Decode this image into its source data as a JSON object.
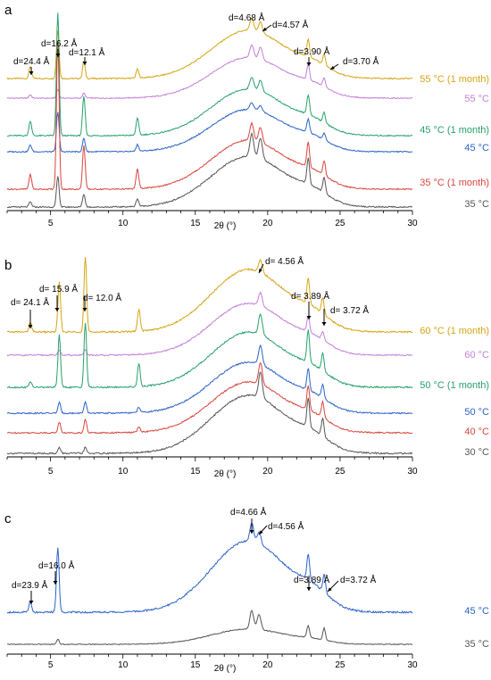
{
  "colors": {
    "55c1m": "#d4a514",
    "55c": "#c47fd8",
    "45c1m": "#27a06b",
    "45c": "#2a62c8",
    "35c1m": "#d9453c",
    "35c": "#555555",
    "60c1m": "#d4a514",
    "60c": "#c47fd8",
    "50c1m": "#27a06b",
    "50c": "#2a62c8",
    "40c": "#d9453c",
    "30c": "#555555",
    "c45c": "#2a62c8",
    "c35c": "#555555",
    "axis": "#000000"
  },
  "chart_data": [
    {
      "type": "line",
      "panel_label": "a",
      "xlabel": "2θ (°)",
      "xlim": [
        2,
        30
      ],
      "xticks": [
        5,
        10,
        15,
        20,
        25,
        30
      ],
      "series": [
        {
          "name": "55 °C (1 month)",
          "color_key": "55c1m",
          "peaks": [
            [
              3.6,
              0.25
            ],
            [
              5.5,
              1.0
            ],
            [
              7.3,
              0.35
            ],
            [
              11.0,
              0.18
            ],
            [
              22.8,
              0.35
            ],
            [
              23.9,
              0.22
            ]
          ],
          "hump": 1.0,
          "sharp_on_hump": [
            [
              18.9,
              0.25
            ],
            [
              19.5,
              0.22
            ]
          ]
        },
        {
          "name": "55 °C",
          "color_key": "55c",
          "peaks": [
            [
              3.6,
              0.08
            ],
            [
              5.5,
              0.2
            ],
            [
              7.3,
              0.12
            ],
            [
              22.8,
              0.35
            ],
            [
              23.9,
              0.2
            ]
          ],
          "hump": 0.95,
          "sharp_on_hump": [
            [
              18.9,
              0.3
            ],
            [
              19.5,
              0.28
            ]
          ]
        },
        {
          "name": "45 °C (1 month)",
          "color_key": "45c1m",
          "peaks": [
            [
              3.6,
              0.3
            ],
            [
              5.5,
              2.5
            ],
            [
              7.3,
              0.8
            ],
            [
              11.0,
              0.35
            ],
            [
              22.8,
              0.4
            ],
            [
              23.9,
              0.2
            ]
          ],
          "hump": 0.95,
          "sharp_on_hump": [
            [
              18.9,
              0.25
            ],
            [
              19.5,
              0.22
            ]
          ]
        },
        {
          "name": "45 °C",
          "color_key": "45c",
          "peaks": [
            [
              3.6,
              0.15
            ],
            [
              5.5,
              0.9
            ],
            [
              7.3,
              0.3
            ],
            [
              11.0,
              0.15
            ],
            [
              22.8,
              0.3
            ],
            [
              23.9,
              0.15
            ]
          ],
          "hump": 0.95,
          "sharp_on_hump": [
            [
              18.9,
              0.15
            ],
            [
              19.5,
              0.12
            ]
          ]
        },
        {
          "name": "35 °C (1 month)",
          "color_key": "35c1m",
          "peaks": [
            [
              3.6,
              0.3
            ],
            [
              5.5,
              3.0
            ],
            [
              7.3,
              0.9
            ],
            [
              11.0,
              0.4
            ],
            [
              22.8,
              0.5
            ],
            [
              23.9,
              0.3
            ]
          ],
          "hump": 1.0,
          "sharp_on_hump": [
            [
              18.9,
              0.35
            ],
            [
              19.5,
              0.3
            ]
          ]
        },
        {
          "name": "35 °C",
          "color_key": "35c",
          "peaks": [
            [
              3.6,
              0.1
            ],
            [
              5.5,
              0.6
            ],
            [
              7.3,
              0.25
            ],
            [
              11.0,
              0.15
            ],
            [
              22.8,
              0.5
            ],
            [
              23.9,
              0.3
            ]
          ],
          "hump": 1.0,
          "sharp_on_hump": [
            [
              18.9,
              0.45
            ],
            [
              19.5,
              0.4
            ]
          ]
        }
      ],
      "annotations": [
        {
          "text": "d=24.4 Å",
          "x": 3.6
        },
        {
          "text": "d=16.2 Å",
          "x": 5.5
        },
        {
          "text": "d=12.1 Å",
          "x": 7.3
        },
        {
          "text": "d=4.68 Å",
          "x": 18.9
        },
        {
          "text": "d=4.57 Å",
          "x": 19.5
        },
        {
          "text": "d=3.90 Å",
          "x": 22.8
        },
        {
          "text": "d=3.70 Å",
          "x": 23.9
        }
      ]
    },
    {
      "type": "line",
      "panel_label": "b",
      "xlabel": "2θ (°)",
      "xlim": [
        2,
        30
      ],
      "xticks": [
        5,
        10,
        15,
        20,
        25,
        30
      ],
      "series": [
        {
          "name": "60 °C (1 month)",
          "color_key": "60c1m",
          "peaks": [
            [
              3.6,
              0.15
            ],
            [
              5.6,
              0.8
            ],
            [
              7.4,
              1.2
            ],
            [
              11.1,
              0.35
            ],
            [
              22.8,
              0.4
            ],
            [
              23.8,
              0.25
            ]
          ],
          "hump": 1.0,
          "sharp_on_hump": [
            [
              19.5,
              0.2
            ]
          ]
        },
        {
          "name": "60 °C",
          "color_key": "60c",
          "peaks": [
            [
              5.6,
              0.1
            ],
            [
              7.4,
              0.1
            ],
            [
              22.8,
              0.3
            ],
            [
              23.8,
              0.15
            ]
          ],
          "hump": 1.0,
          "sharp_on_hump": [
            [
              19.5,
              0.25
            ]
          ]
        },
        {
          "name": "50 °C (1 month)",
          "color_key": "50c1m",
          "peaks": [
            [
              3.6,
              0.1
            ],
            [
              5.6,
              0.9
            ],
            [
              7.4,
              1.1
            ],
            [
              11.1,
              0.4
            ],
            [
              22.8,
              0.55
            ],
            [
              23.8,
              0.3
            ]
          ],
          "hump": 0.95,
          "sharp_on_hump": [
            [
              19.5,
              0.35
            ]
          ]
        },
        {
          "name": "50 °C",
          "color_key": "50c",
          "peaks": [
            [
              5.6,
              0.2
            ],
            [
              7.4,
              0.2
            ],
            [
              11.1,
              0.1
            ],
            [
              22.8,
              0.4
            ],
            [
              23.8,
              0.25
            ]
          ],
          "hump": 0.95,
          "sharp_on_hump": [
            [
              19.5,
              0.35
            ]
          ]
        },
        {
          "name": "40 °C",
          "color_key": "40c",
          "peaks": [
            [
              5.6,
              0.2
            ],
            [
              7.4,
              0.25
            ],
            [
              11.1,
              0.1
            ],
            [
              22.8,
              0.45
            ],
            [
              23.8,
              0.3
            ]
          ],
          "hump": 0.95,
          "sharp_on_hump": [
            [
              19.5,
              0.4
            ]
          ]
        },
        {
          "name": "30 °C",
          "color_key": "30c",
          "peaks": [
            [
              5.6,
              0.1
            ],
            [
              7.4,
              0.1
            ],
            [
              22.8,
              0.5
            ],
            [
              23.8,
              0.3
            ]
          ],
          "hump": 1.0,
          "sharp_on_hump": [
            [
              19.5,
              0.45
            ]
          ]
        }
      ],
      "annotations": [
        {
          "text": "d= 24.1 Å",
          "x": 3.6
        },
        {
          "text": "d= 15.9 Å",
          "x": 5.6
        },
        {
          "text": "d= 12.0 Å",
          "x": 7.4
        },
        {
          "text": "d= 4.56 Å",
          "x": 19.5
        },
        {
          "text": "d= 3.89 Å",
          "x": 22.8
        },
        {
          "text": "d= 3.72 Å",
          "x": 23.8
        }
      ]
    },
    {
      "type": "line",
      "panel_label": "c",
      "xlabel": "2θ (°)",
      "xlim": [
        2,
        30
      ],
      "xticks": [
        5,
        10,
        15,
        20,
        25,
        30
      ],
      "series": [
        {
          "name": "45 °C",
          "color_key": "c45c",
          "peaks": [
            [
              3.6,
              0.15
            ],
            [
              5.5,
              0.9
            ],
            [
              22.8,
              0.35
            ],
            [
              23.9,
              0.25
            ]
          ],
          "hump": 1.0,
          "sharp_on_hump": [
            [
              18.9,
              0.25
            ],
            [
              19.4,
              0.15
            ]
          ]
        },
        {
          "name": "35 °C",
          "color_key": "c35c",
          "peaks": [
            [
              5.5,
              0.15
            ],
            [
              22.8,
              0.35
            ],
            [
              23.9,
              0.35
            ]
          ],
          "hump": 0.45,
          "sharp_on_hump": [
            [
              18.9,
              0.55
            ],
            [
              19.4,
              0.45
            ]
          ]
        }
      ],
      "annotations": [
        {
          "text": "d=23.9 Å",
          "x": 3.6
        },
        {
          "text": "d=16.0 Å",
          "x": 5.5
        },
        {
          "text": "d=4.66 Å",
          "x": 18.9
        },
        {
          "text": "d=4.56 Å",
          "x": 19.4
        },
        {
          "text": "d=3.89 Å",
          "x": 22.8
        },
        {
          "text": "d=3.72 Å",
          "x": 23.9
        }
      ]
    }
  ]
}
